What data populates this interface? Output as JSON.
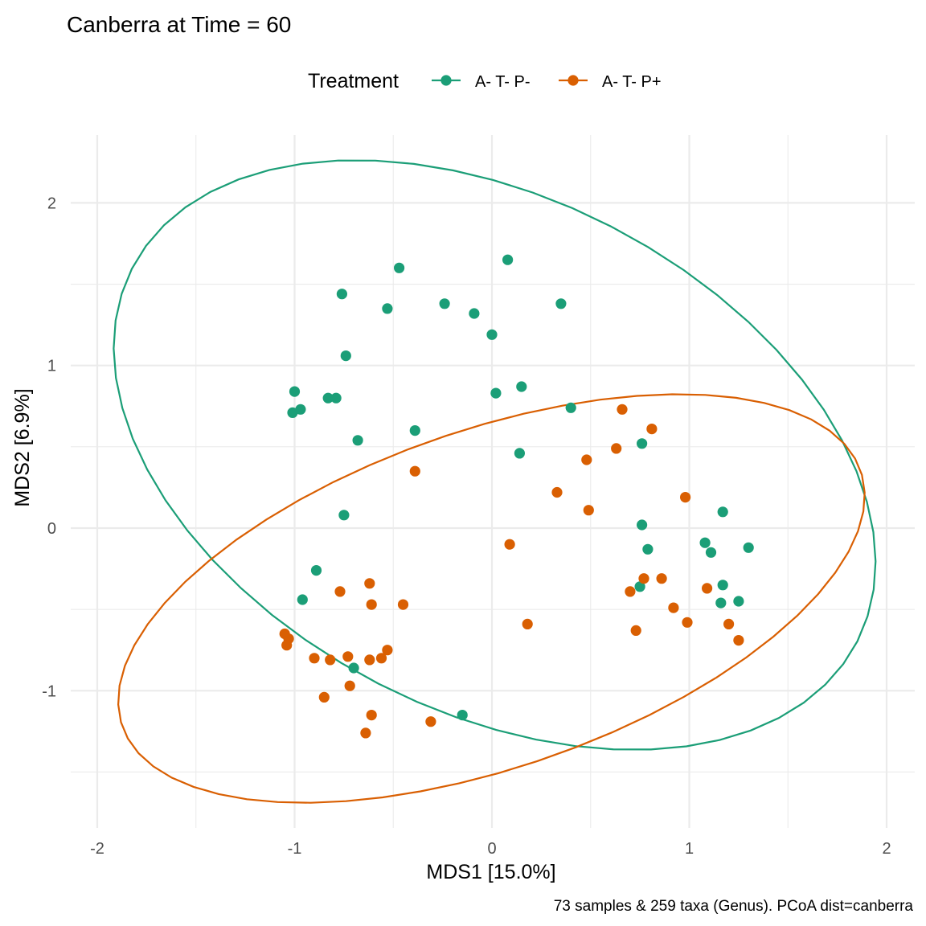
{
  "chart_data": {
    "type": "scatter",
    "title": "Canberra at Time = 60",
    "xlabel": "MDS1 [15.0%]",
    "ylabel": "MDS2 [6.9%]",
    "caption": "73 samples & 259 taxa (Genus). PCoA dist=canberra",
    "legend": {
      "title": "Treatment",
      "placement": "top"
    },
    "xlim": [
      -2.1,
      2.1
    ],
    "ylim": [
      -1.7,
      2.4
    ],
    "x_ticks": [
      "-2",
      "-1",
      "0",
      "1",
      "2"
    ],
    "y_ticks": [
      "-1",
      "0",
      "1",
      "2"
    ],
    "grid": true,
    "series": [
      {
        "name": "A- T- P-",
        "color": "#1b9e77",
        "points": [
          [
            0.08,
            1.65
          ],
          [
            -0.47,
            1.6
          ],
          [
            -0.76,
            1.44
          ],
          [
            -0.53,
            1.35
          ],
          [
            -0.24,
            1.38
          ],
          [
            -0.09,
            1.32
          ],
          [
            0.35,
            1.38
          ],
          [
            0.0,
            1.19
          ],
          [
            -0.74,
            1.06
          ],
          [
            -1.0,
            0.84
          ],
          [
            -1.01,
            0.71
          ],
          [
            -0.97,
            0.73
          ],
          [
            -0.83,
            0.8
          ],
          [
            -0.79,
            0.8
          ],
          [
            0.02,
            0.83
          ],
          [
            0.15,
            0.87
          ],
          [
            0.4,
            0.74
          ],
          [
            -0.39,
            0.6
          ],
          [
            -0.68,
            0.54
          ],
          [
            0.76,
            0.52
          ],
          [
            0.14,
            0.46
          ],
          [
            -0.75,
            0.08
          ],
          [
            1.17,
            0.1
          ],
          [
            0.76,
            0.02
          ],
          [
            0.79,
            -0.13
          ],
          [
            1.08,
            -0.09
          ],
          [
            1.11,
            -0.15
          ],
          [
            1.3,
            -0.12
          ],
          [
            -0.89,
            -0.26
          ],
          [
            0.75,
            -0.36
          ],
          [
            1.17,
            -0.35
          ],
          [
            1.16,
            -0.46
          ],
          [
            1.25,
            -0.45
          ],
          [
            -0.96,
            -0.44
          ],
          [
            -0.7,
            -0.86
          ],
          [
            -0.15,
            -1.15
          ]
        ]
      },
      {
        "name": "A- T- P+",
        "color": "#d95f02",
        "points": [
          [
            0.66,
            0.73
          ],
          [
            0.81,
            0.61
          ],
          [
            0.63,
            0.49
          ],
          [
            0.48,
            0.42
          ],
          [
            -0.39,
            0.35
          ],
          [
            0.33,
            0.22
          ],
          [
            0.49,
            0.11
          ],
          [
            0.98,
            0.19
          ],
          [
            0.09,
            -0.1
          ],
          [
            0.77,
            -0.31
          ],
          [
            0.86,
            -0.31
          ],
          [
            1.09,
            -0.37
          ],
          [
            0.7,
            -0.39
          ],
          [
            0.92,
            -0.49
          ],
          [
            0.99,
            -0.58
          ],
          [
            1.2,
            -0.59
          ],
          [
            0.73,
            -0.63
          ],
          [
            1.25,
            -0.69
          ],
          [
            0.18,
            -0.59
          ],
          [
            -0.62,
            -0.34
          ],
          [
            -0.61,
            -0.47
          ],
          [
            -0.45,
            -0.47
          ],
          [
            -0.77,
            -0.39
          ],
          [
            -1.05,
            -0.65
          ],
          [
            -1.03,
            -0.68
          ],
          [
            -1.04,
            -0.72
          ],
          [
            -0.9,
            -0.8
          ],
          [
            -0.82,
            -0.81
          ],
          [
            -0.73,
            -0.79
          ],
          [
            -0.62,
            -0.81
          ],
          [
            -0.56,
            -0.8
          ],
          [
            -0.53,
            -0.75
          ],
          [
            -0.72,
            -0.97
          ],
          [
            -0.85,
            -1.04
          ],
          [
            -0.61,
            -1.15
          ],
          [
            -0.64,
            -1.26
          ],
          [
            -0.31,
            -1.19
          ]
        ]
      }
    ]
  }
}
